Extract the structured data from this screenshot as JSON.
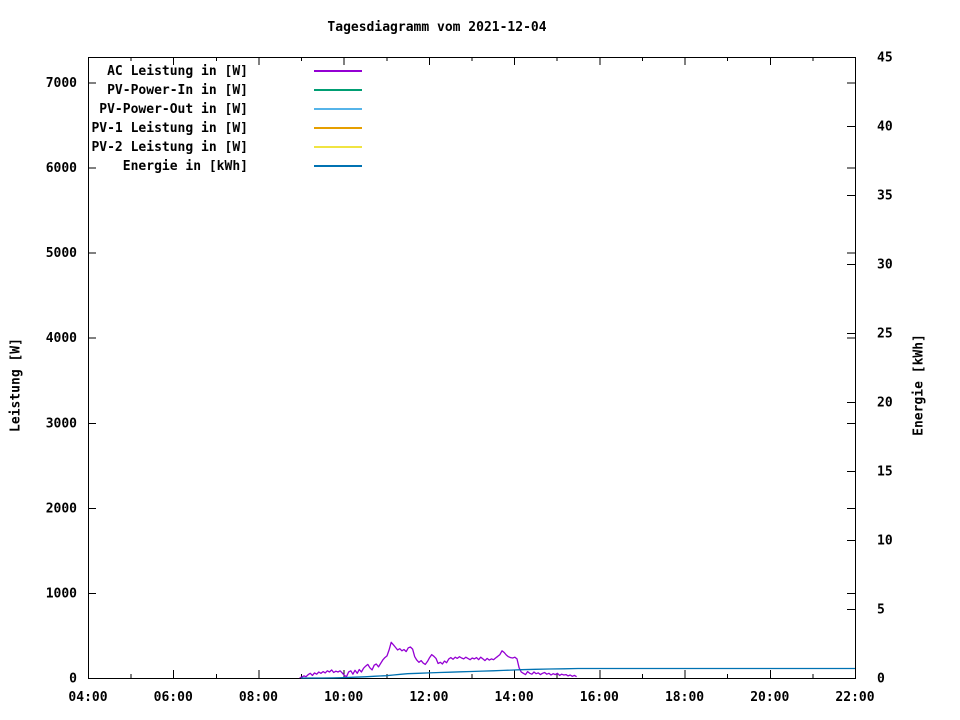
{
  "chart_data": {
    "type": "line",
    "title": "Tagesdiagramm vom 2021-12-04",
    "grid": false,
    "legend_position": "top-left-inside",
    "x_axis": {
      "kind": "time-of-day",
      "start": "04:00",
      "end": "22:00",
      "major_tick_every_minutes": 120,
      "minor_tick_every_minutes": 60,
      "major_tick_labels": [
        "04:00",
        "06:00",
        "08:00",
        "10:00",
        "12:00",
        "14:00",
        "16:00",
        "18:00",
        "20:00",
        "22:00"
      ]
    },
    "y_axis": {
      "label": "Leistung [W]",
      "min": 0,
      "max": 7300,
      "tick_values": [
        0,
        1000,
        2000,
        3000,
        4000,
        5000,
        6000,
        7000
      ],
      "tick_labels": [
        "0",
        "1000",
        "2000",
        "3000",
        "4000",
        "5000",
        "6000",
        "7000"
      ],
      "mirror_ticks_right": true
    },
    "y2_axis": {
      "label": "Energie [kWh]",
      "min": 0,
      "max": 45,
      "tick_values": [
        0,
        5,
        10,
        15,
        20,
        25,
        30,
        35,
        40,
        45
      ],
      "tick_labels": [
        "0",
        "5",
        "10",
        "15",
        "20",
        "25",
        "30",
        "35",
        "40",
        "45"
      ]
    },
    "series": [
      {
        "name": "AC Leistung in [W]",
        "color": "#9400d3",
        "axis": "y1",
        "points": [
          [
            "08:58",
            3
          ],
          [
            "09:01",
            10
          ],
          [
            "09:04",
            25
          ],
          [
            "09:07",
            15
          ],
          [
            "09:10",
            40
          ],
          [
            "09:13",
            55
          ],
          [
            "09:16",
            30
          ],
          [
            "09:19",
            60
          ],
          [
            "09:22",
            45
          ],
          [
            "09:25",
            70
          ],
          [
            "09:28",
            55
          ],
          [
            "09:31",
            75
          ],
          [
            "09:34",
            60
          ],
          [
            "09:37",
            85
          ],
          [
            "09:40",
            70
          ],
          [
            "09:43",
            95
          ],
          [
            "09:46",
            65
          ],
          [
            "09:49",
            80
          ],
          [
            "09:52",
            70
          ],
          [
            "09:55",
            85
          ],
          [
            "09:58",
            60
          ],
          [
            "10:01",
            30
          ],
          [
            "10:04",
            15
          ],
          [
            "10:07",
            70
          ],
          [
            "10:10",
            85
          ],
          [
            "10:13",
            45
          ],
          [
            "10:16",
            90
          ],
          [
            "10:19",
            55
          ],
          [
            "10:22",
            100
          ],
          [
            "10:25",
            70
          ],
          [
            "10:28",
            115
          ],
          [
            "10:31",
            140
          ],
          [
            "10:34",
            160
          ],
          [
            "10:37",
            120
          ],
          [
            "10:40",
            95
          ],
          [
            "10:43",
            150
          ],
          [
            "10:46",
            165
          ],
          [
            "10:49",
            130
          ],
          [
            "10:52",
            170
          ],
          [
            "10:55",
            210
          ],
          [
            "10:58",
            240
          ],
          [
            "11:01",
            260
          ],
          [
            "11:04",
            330
          ],
          [
            "11:07",
            420
          ],
          [
            "11:10",
            390
          ],
          [
            "11:13",
            360
          ],
          [
            "11:16",
            330
          ],
          [
            "11:19",
            345
          ],
          [
            "11:22",
            320
          ],
          [
            "11:25",
            335
          ],
          [
            "11:28",
            310
          ],
          [
            "11:31",
            355
          ],
          [
            "11:34",
            365
          ],
          [
            "11:37",
            340
          ],
          [
            "11:40",
            250
          ],
          [
            "11:43",
            210
          ],
          [
            "11:46",
            185
          ],
          [
            "11:49",
            205
          ],
          [
            "11:52",
            175
          ],
          [
            "11:55",
            160
          ],
          [
            "11:58",
            195
          ],
          [
            "12:01",
            240
          ],
          [
            "12:04",
            275
          ],
          [
            "12:07",
            255
          ],
          [
            "12:10",
            230
          ],
          [
            "12:13",
            170
          ],
          [
            "12:16",
            185
          ],
          [
            "12:19",
            165
          ],
          [
            "12:22",
            200
          ],
          [
            "12:25",
            180
          ],
          [
            "12:28",
            225
          ],
          [
            "12:31",
            240
          ],
          [
            "12:34",
            220
          ],
          [
            "12:37",
            245
          ],
          [
            "12:40",
            230
          ],
          [
            "12:43",
            250
          ],
          [
            "12:46",
            235
          ],
          [
            "12:49",
            225
          ],
          [
            "12:52",
            245
          ],
          [
            "12:55",
            230
          ],
          [
            "12:58",
            215
          ],
          [
            "13:01",
            235
          ],
          [
            "13:04",
            225
          ],
          [
            "13:07",
            240
          ],
          [
            "13:10",
            215
          ],
          [
            "13:13",
            245
          ],
          [
            "13:16",
            225
          ],
          [
            "13:19",
            205
          ],
          [
            "13:22",
            230
          ],
          [
            "13:25",
            210
          ],
          [
            "13:28",
            225
          ],
          [
            "13:31",
            215
          ],
          [
            "13:34",
            235
          ],
          [
            "13:37",
            255
          ],
          [
            "13:40",
            275
          ],
          [
            "13:43",
            320
          ],
          [
            "13:46",
            300
          ],
          [
            "13:49",
            270
          ],
          [
            "13:52",
            250
          ],
          [
            "13:55",
            240
          ],
          [
            "13:58",
            235
          ],
          [
            "14:01",
            245
          ],
          [
            "14:04",
            225
          ],
          [
            "14:07",
            120
          ],
          [
            "14:10",
            70
          ],
          [
            "14:13",
            55
          ],
          [
            "14:16",
            40
          ],
          [
            "14:19",
            75
          ],
          [
            "14:22",
            55
          ],
          [
            "14:25",
            45
          ],
          [
            "14:28",
            70
          ],
          [
            "14:31",
            50
          ],
          [
            "14:34",
            60
          ],
          [
            "14:37",
            40
          ],
          [
            "14:40",
            55
          ],
          [
            "14:43",
            65
          ],
          [
            "14:46",
            45
          ],
          [
            "14:49",
            55
          ],
          [
            "14:52",
            35
          ],
          [
            "14:55",
            50
          ],
          [
            "14:58",
            40
          ],
          [
            "15:01",
            55
          ],
          [
            "15:04",
            30
          ],
          [
            "15:07",
            45
          ],
          [
            "15:10",
            35
          ],
          [
            "15:13",
            40
          ],
          [
            "15:16",
            25
          ],
          [
            "15:19",
            35
          ],
          [
            "15:22",
            20
          ],
          [
            "15:25",
            30
          ],
          [
            "15:28",
            15
          ]
        ]
      },
      {
        "name": "PV-Power-In in [W]",
        "color": "#009e73",
        "axis": "y1",
        "points": []
      },
      {
        "name": "PV-Power-Out in [W]",
        "color": "#56b4e9",
        "axis": "y1",
        "points": []
      },
      {
        "name": "PV-1 Leistung in [W]",
        "color": "#e69f00",
        "axis": "y1",
        "points": []
      },
      {
        "name": "PV-2 Leistung in [W]",
        "color": "#f0e442",
        "axis": "y1",
        "points": []
      },
      {
        "name": "Energie in [kWh]",
        "color": "#0072b2",
        "axis": "y2",
        "points": [
          [
            "09:00",
            0.0
          ],
          [
            "09:30",
            0.0
          ],
          [
            "09:45",
            0.01
          ],
          [
            "10:00",
            0.03
          ],
          [
            "10:15",
            0.06
          ],
          [
            "10:30",
            0.09
          ],
          [
            "10:45",
            0.13
          ],
          [
            "11:00",
            0.17
          ],
          [
            "11:10",
            0.22
          ],
          [
            "11:20",
            0.27
          ],
          [
            "11:30",
            0.31
          ],
          [
            "11:45",
            0.34
          ],
          [
            "12:00",
            0.37
          ],
          [
            "12:15",
            0.4
          ],
          [
            "12:30",
            0.42
          ],
          [
            "12:45",
            0.45
          ],
          [
            "13:00",
            0.47
          ],
          [
            "13:15",
            0.5
          ],
          [
            "13:30",
            0.52
          ],
          [
            "13:45",
            0.55
          ],
          [
            "14:00",
            0.58
          ],
          [
            "14:10",
            0.6
          ],
          [
            "14:30",
            0.63
          ],
          [
            "14:50",
            0.65
          ],
          [
            "15:10",
            0.67
          ],
          [
            "15:30",
            0.69
          ],
          [
            "22:00",
            0.69
          ]
        ]
      }
    ]
  }
}
